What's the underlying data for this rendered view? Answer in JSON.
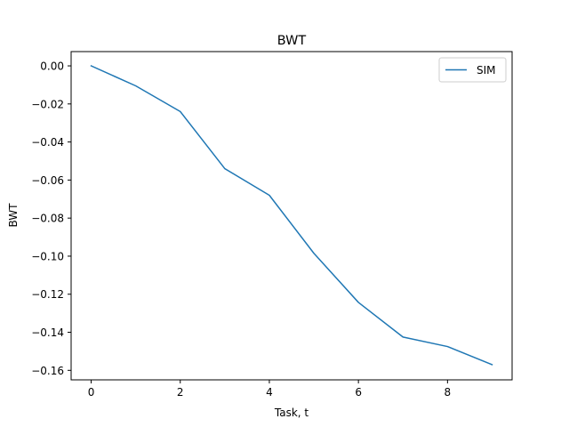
{
  "chart_data": {
    "type": "line",
    "title": "BWT",
    "xlabel": "Task, t",
    "ylabel": "BWT",
    "xlim": [
      -0.45,
      9.45
    ],
    "ylim": [
      -0.165,
      0.0075
    ],
    "xticks": [
      0,
      2,
      4,
      6,
      8
    ],
    "xtick_labels": [
      "0",
      "2",
      "4",
      "6",
      "8"
    ],
    "yticks": [
      0.0,
      -0.02,
      -0.04,
      -0.06,
      -0.08,
      -0.1,
      -0.12,
      -0.14,
      -0.16
    ],
    "ytick_labels": [
      "0.00",
      "−0.02",
      "−0.04",
      "−0.06",
      "−0.08",
      "−0.10",
      "−0.12",
      "−0.14",
      "−0.16"
    ],
    "grid": false,
    "legend": "top-right",
    "series": [
      {
        "name": "SIM",
        "color": "#1f77b4",
        "x": [
          0,
          1,
          2,
          3,
          4,
          5,
          6,
          7,
          8,
          9
        ],
        "y": [
          0.0,
          -0.0105,
          -0.024,
          -0.054,
          -0.068,
          -0.0985,
          -0.1243,
          -0.1425,
          -0.1475,
          -0.157
        ]
      }
    ]
  }
}
